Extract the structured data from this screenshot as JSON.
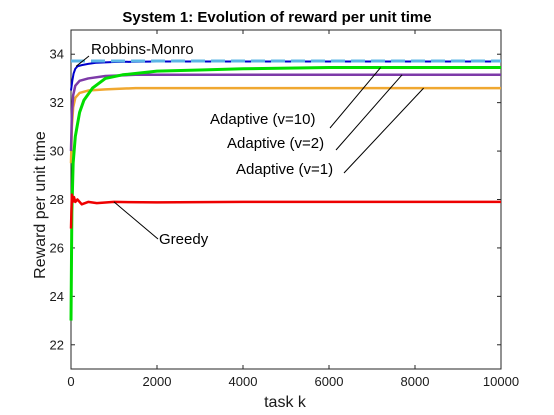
{
  "chart_data": {
    "type": "line",
    "title": "System 1: Evolution of reward per unit time",
    "xlabel": "task k",
    "ylabel": "Reward per unit time",
    "xlim": [
      0,
      10000
    ],
    "ylim": [
      21,
      35
    ],
    "xticks": [
      0,
      2000,
      4000,
      6000,
      8000,
      10000
    ],
    "yticks": [
      22,
      24,
      26,
      28,
      30,
      32,
      34
    ],
    "grid": false,
    "legend": "none",
    "series": [
      {
        "name": "Robbins-Monro",
        "color": "#0000cc",
        "x": [
          0,
          30,
          60,
          100,
          150,
          250,
          400,
          600,
          1000,
          2000,
          4000,
          6000,
          8000,
          10000
        ],
        "y": [
          32.5,
          32.9,
          33.2,
          33.4,
          33.5,
          33.55,
          33.6,
          33.65,
          33.68,
          33.7,
          33.7,
          33.7,
          33.7,
          33.7
        ]
      },
      {
        "name": "",
        "color": "#5bb5e6",
        "x": [
          0,
          10000
        ],
        "y": [
          33.72,
          33.72
        ]
      },
      {
        "name": "Adaptive (v=10)",
        "color": "#00dd00",
        "x": [
          0,
          20,
          50,
          100,
          200,
          300,
          500,
          800,
          1200,
          2000,
          3000,
          4000,
          6000,
          8000,
          10000
        ],
        "y": [
          23.0,
          27.5,
          29.5,
          30.6,
          31.6,
          32.1,
          32.6,
          33.0,
          33.15,
          33.3,
          33.35,
          33.4,
          33.45,
          33.45,
          33.45
        ]
      },
      {
        "name": "Adaptive (v=2)",
        "color": "#7d3aa8",
        "x": [
          0,
          20,
          50,
          100,
          200,
          400,
          800,
          1500,
          3000,
          6000,
          10000
        ],
        "y": [
          30.0,
          31.5,
          32.3,
          32.7,
          32.9,
          33.0,
          33.1,
          33.15,
          33.15,
          33.15,
          33.15
        ]
      },
      {
        "name": "Adaptive (v=1)",
        "color": "#f0a830",
        "x": [
          0,
          20,
          50,
          100,
          200,
          400,
          800,
          1500,
          3000,
          6000,
          10000
        ],
        "y": [
          29.5,
          31.0,
          31.8,
          32.2,
          32.4,
          32.5,
          32.55,
          32.6,
          32.6,
          32.6,
          32.6
        ]
      },
      {
        "name": "Greedy",
        "color": "#ee0000",
        "x": [
          0,
          20,
          40,
          70,
          100,
          150,
          250,
          400,
          600,
          1000,
          2000,
          4000,
          6000,
          8000,
          10000
        ],
        "y": [
          26.8,
          28.2,
          27.9,
          28.1,
          27.9,
          28.0,
          27.8,
          27.9,
          27.85,
          27.9,
          27.88,
          27.9,
          27.9,
          27.9,
          27.9
        ]
      }
    ],
    "annotations": [
      {
        "text": "Robbins-Monro",
        "target_series": "Robbins-Monro",
        "target_x": 120,
        "target_y": 33.5
      },
      {
        "text": "Adaptive (v=10)",
        "target_series": "Adaptive (v=10)",
        "target_x": 7200,
        "target_y": 33.45
      },
      {
        "text": "Adaptive (v=2)",
        "target_series": "Adaptive (v=2)",
        "target_x": 7700,
        "target_y": 33.15
      },
      {
        "text": "Adaptive (v=1)",
        "target_series": "Adaptive (v=1)",
        "target_x": 8200,
        "target_y": 32.6
      },
      {
        "text": "Greedy",
        "target_series": "Greedy",
        "target_x": 1000,
        "target_y": 27.9
      }
    ]
  }
}
